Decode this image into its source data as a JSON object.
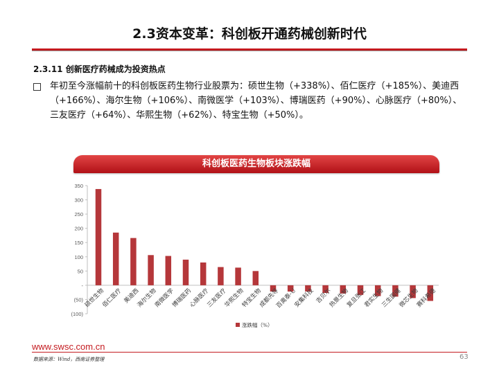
{
  "slide": {
    "title": "2.3资本变革：科创板开通药械创新时代",
    "section": "2.3.11 创新医疗药械成为投资热点",
    "bullet": "年初至今涨幅前十的科创板医药生物行业股票为：硕世生物（+338%）、佰仁医疗（+185%）、美迪西（+166%）、海尔生物（+106%）、南微医学（+103%）、博瑞医药（+90%）、心脉医疗（+80%）、三友医疗（+64%）、华熙生物（+62%）、特宝生物（+50%）。",
    "chart_banner": "科创板医药生物板块涨跌幅",
    "footer_url": "www.swsc.com.cn",
    "footer_source": "数据来源：Wind，西南证券整理",
    "page_number": "63"
  },
  "colors": {
    "accent": "#c41a1f",
    "bar": "#b5373a"
  },
  "chart_data": {
    "type": "bar",
    "categories": [
      "硕世生物",
      "佰仁医疗",
      "美迪西",
      "海尔生物",
      "南微医学",
      "博瑞医药",
      "心脉医疗",
      "三友医疗",
      "华熙生物",
      "特宝生物",
      "成都先导",
      "百奥泰-U",
      "安集科技",
      "吉贝尔",
      "热景生物",
      "复旦张江",
      "君实生物",
      "三生国健",
      "微芯生物",
      "赛科希德"
    ],
    "series": [
      {
        "name": "涨跌幅（%）",
        "values": [
          338,
          185,
          166,
          106,
          103,
          90,
          80,
          64,
          62,
          50,
          -22,
          -22,
          -22,
          -27,
          -29,
          -34,
          -38,
          -40,
          -45,
          -55
        ]
      }
    ],
    "ylim": [
      -100,
      350
    ],
    "yticks": [
      350,
      300,
      250,
      200,
      150,
      100,
      50,
      0,
      -50,
      -100
    ],
    "ytick_labels": [
      "350",
      "300",
      "250",
      "200",
      "150",
      "100",
      "50",
      "-",
      "(50)",
      "(100)"
    ],
    "legend": "bottom-center",
    "grid": false
  }
}
